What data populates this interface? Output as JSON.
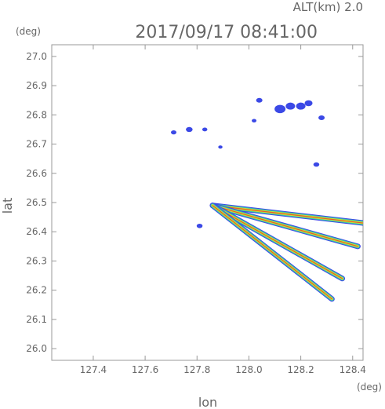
{
  "header": {
    "altitude_label": "ALT(km)  2.0",
    "timestamp": "2017/09/17 08:41:00"
  },
  "chart_data": {
    "type": "scatter",
    "title": "2017/09/17 08:41:00",
    "subtitle": "ALT(km)  2.0",
    "xlabel": "lon",
    "ylabel": "lat",
    "x_unit": "(deg)",
    "y_unit": "(deg)",
    "xlim": [
      127.24,
      128.44
    ],
    "ylim": [
      25.96,
      27.04
    ],
    "x_ticks": [
      127.4,
      127.6,
      127.8,
      128.0,
      128.2,
      128.4
    ],
    "y_ticks": [
      26.0,
      26.1,
      26.2,
      26.3,
      26.4,
      26.5,
      26.6,
      26.7,
      26.8,
      26.9,
      27.0
    ],
    "x_tick_labels": [
      "127.4",
      "127.6",
      "127.8",
      "128.0",
      "128.2",
      "128.4"
    ],
    "y_tick_labels": [
      "26.0",
      "26.1",
      "26.2",
      "26.3",
      "26.4",
      "26.5",
      "26.6",
      "26.7",
      "26.8",
      "26.9",
      "27.0"
    ],
    "grid": false,
    "origin": [
      127.86,
      26.49
    ],
    "colors": {
      "low": "#3b49e6",
      "mid": "#38c6a8",
      "high": "#c8e63a",
      "peak": "#e85a28"
    },
    "echo_cells": [
      {
        "lon": 128.12,
        "lat": 26.82,
        "size": 1.0,
        "color": "#3b49e6"
      },
      {
        "lon": 128.16,
        "lat": 26.83,
        "size": 0.8,
        "color": "#3b49e6"
      },
      {
        "lon": 128.2,
        "lat": 26.83,
        "size": 0.8,
        "color": "#3b49e6"
      },
      {
        "lon": 128.23,
        "lat": 26.84,
        "size": 0.6,
        "color": "#3b49e6"
      },
      {
        "lon": 128.04,
        "lat": 26.85,
        "size": 0.4,
        "color": "#3b49e6"
      },
      {
        "lon": 128.28,
        "lat": 26.79,
        "size": 0.4,
        "color": "#3b49e6"
      },
      {
        "lon": 127.77,
        "lat": 26.75,
        "size": 0.45,
        "color": "#3b49e6"
      },
      {
        "lon": 127.71,
        "lat": 26.74,
        "size": 0.3,
        "color": "#3b49e6"
      },
      {
        "lon": 127.83,
        "lat": 26.75,
        "size": 0.25,
        "color": "#3b49e6"
      },
      {
        "lon": 128.02,
        "lat": 26.78,
        "size": 0.2,
        "color": "#3b49e6"
      },
      {
        "lon": 128.26,
        "lat": 26.63,
        "size": 0.35,
        "color": "#3b49e6"
      },
      {
        "lon": 127.81,
        "lat": 26.42,
        "size": 0.35,
        "color": "#3b49e6"
      },
      {
        "lon": 127.89,
        "lat": 26.69,
        "size": 0.15,
        "color": "#3b49e6"
      }
    ],
    "radial_bands": [
      {
        "end_lon": 128.44,
        "end_lat": 26.43,
        "width": 0.012,
        "colors": [
          "#3b49e6",
          "#38c6a8",
          "#c8e63a",
          "#e85a28"
        ]
      },
      {
        "end_lon": 128.42,
        "end_lat": 26.35,
        "width": 0.012,
        "colors": [
          "#3b49e6",
          "#38c6a8",
          "#c8e63a",
          "#e85a28"
        ]
      },
      {
        "end_lon": 128.36,
        "end_lat": 26.24,
        "width": 0.012,
        "colors": [
          "#3b49e6",
          "#38c6a8",
          "#c8e63a",
          "#e85a28"
        ]
      },
      {
        "end_lon": 128.32,
        "end_lat": 26.17,
        "width": 0.012,
        "colors": [
          "#3b49e6",
          "#38c6a8",
          "#c8e63a",
          "#e85a28"
        ]
      }
    ]
  }
}
